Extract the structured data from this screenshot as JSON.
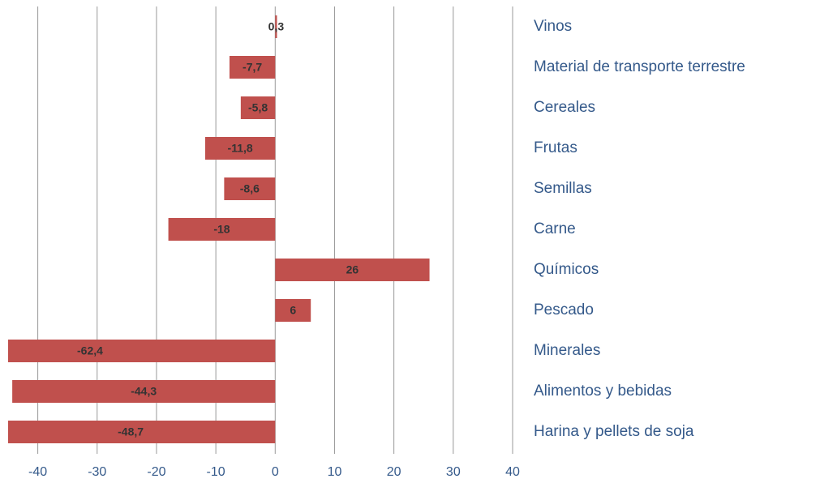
{
  "chart_data": {
    "type": "bar",
    "orientation": "horizontal",
    "categories": [
      "Vinos",
      "Material de transporte terrestre",
      "Cereales",
      "Frutas",
      "Semillas",
      "Carne",
      "Químicos",
      "Pescado",
      "Minerales",
      "Alimentos y bebidas",
      "Harina y pellets de soja"
    ],
    "values": [
      0.3,
      -7.7,
      -5.8,
      -11.8,
      -8.6,
      -18,
      26,
      6,
      -62.4,
      -44.3,
      -48.7
    ],
    "value_labels": [
      "0,3",
      "-7,7",
      "-5,8",
      "-11,8",
      "-8,6",
      "-18",
      "26",
      "6",
      "-62,4",
      "-44,3",
      "-48,7"
    ],
    "color": "#c0504d",
    "xlim": [
      -45,
      40
    ],
    "xticks": [
      -40,
      -30,
      -20,
      -10,
      0,
      10,
      20,
      30,
      40
    ],
    "grid": true
  }
}
